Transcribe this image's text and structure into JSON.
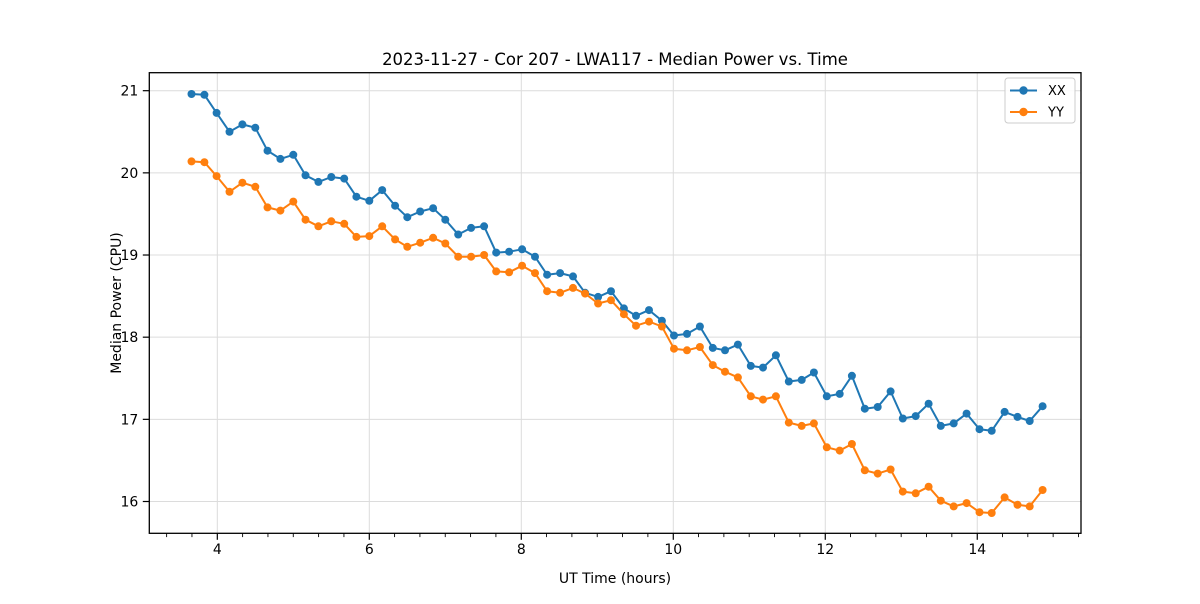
{
  "chart_data": {
    "type": "line",
    "title": "2023-11-27 - Cor 207 - LWA117 - Median Power vs. Time",
    "xlabel": "UT Time (hours)",
    "ylabel": "Median Power (CPU)",
    "xlim": [
      3.105,
      15.365
    ],
    "ylim": [
      15.613,
      21.219
    ],
    "xticks": [
      4,
      6,
      8,
      10,
      12,
      14
    ],
    "yticks": [
      16,
      17,
      18,
      19,
      20,
      21
    ],
    "x_minor_step": 0.3333,
    "grid": true,
    "grid_color": "#dcdcdc",
    "legend_position": "upper right",
    "x": [
      3.66,
      3.83,
      3.99,
      4.16,
      4.33,
      4.5,
      4.66,
      4.83,
      5.0,
      5.16,
      5.33,
      5.5,
      5.67,
      5.83,
      6.0,
      6.17,
      6.34,
      6.5,
      6.67,
      6.84,
      7.0,
      7.17,
      7.34,
      7.51,
      7.67,
      7.84,
      8.01,
      8.18,
      8.34,
      8.51,
      8.68,
      8.84,
      9.01,
      9.18,
      9.35,
      9.51,
      9.68,
      9.85,
      10.01,
      10.18,
      10.35,
      10.52,
      10.68,
      10.85,
      11.02,
      11.18,
      11.35,
      11.52,
      11.69,
      11.85,
      12.02,
      12.19,
      12.35,
      12.52,
      12.69,
      12.86,
      13.02,
      13.19,
      13.36,
      13.52,
      13.69,
      13.86,
      14.03,
      14.19,
      14.36,
      14.53,
      14.69,
      14.86
    ],
    "series": [
      {
        "name": "XX",
        "color": "#1f77b4",
        "values": [
          20.96,
          20.95,
          20.73,
          20.5,
          20.59,
          20.55,
          20.27,
          20.17,
          20.22,
          19.97,
          19.89,
          19.95,
          19.93,
          19.71,
          19.66,
          19.79,
          19.6,
          19.46,
          19.53,
          19.57,
          19.43,
          19.25,
          19.33,
          19.35,
          19.03,
          19.04,
          19.07,
          18.98,
          18.76,
          18.78,
          18.74,
          18.54,
          18.49,
          18.56,
          18.35,
          18.26,
          18.33,
          18.2,
          18.02,
          18.04,
          18.13,
          17.87,
          17.84,
          17.91,
          17.65,
          17.63,
          17.78,
          17.46,
          17.48,
          17.57,
          17.28,
          17.31,
          17.53,
          17.13,
          17.15,
          17.34,
          17.01,
          17.04,
          17.19,
          16.92,
          16.95,
          17.07,
          16.88,
          16.86,
          17.09,
          17.03,
          16.98,
          17.16
        ]
      },
      {
        "name": "YY",
        "color": "#ff7f0e",
        "values": [
          20.14,
          20.13,
          19.96,
          19.77,
          19.88,
          19.83,
          19.58,
          19.54,
          19.65,
          19.43,
          19.35,
          19.41,
          19.38,
          19.22,
          19.23,
          19.35,
          19.19,
          19.1,
          19.15,
          19.21,
          19.14,
          18.98,
          18.98,
          19.0,
          18.8,
          18.79,
          18.87,
          18.78,
          18.56,
          18.54,
          18.6,
          18.53,
          18.41,
          18.45,
          18.28,
          18.14,
          18.19,
          18.13,
          17.86,
          17.84,
          17.88,
          17.66,
          17.58,
          17.51,
          17.28,
          17.24,
          17.28,
          16.96,
          16.92,
          16.95,
          16.66,
          16.62,
          16.7,
          16.38,
          16.34,
          16.39,
          16.12,
          16.1,
          16.18,
          16.01,
          15.94,
          15.98,
          15.87,
          15.86,
          16.05,
          15.96,
          15.94,
          16.14
        ]
      }
    ]
  }
}
